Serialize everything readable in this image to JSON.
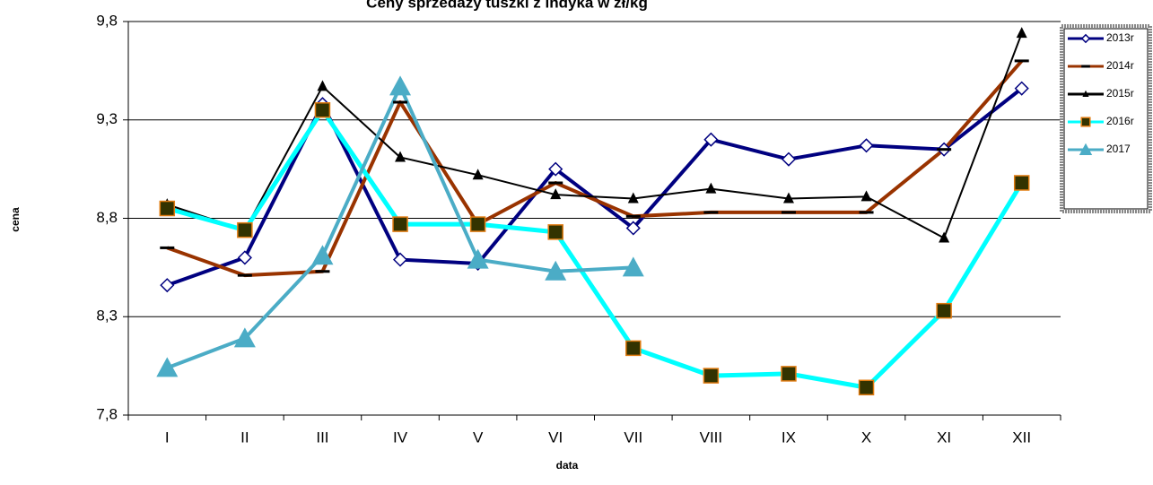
{
  "chart_data": {
    "type": "line",
    "title": "Ceny sprzedaży tuszki z indyka w zł/kg",
    "x_label": "data",
    "y_label": "cena",
    "categories": [
      "I",
      "II",
      "III",
      "IV",
      "V",
      "VI",
      "VII",
      "VIII",
      "IX",
      "X",
      "XI",
      "XII"
    ],
    "ylim": [
      7.8,
      9.8
    ],
    "yticks": [
      {
        "value": 7.8,
        "label": "7,8"
      },
      {
        "value": 8.3,
        "label": "8,3"
      },
      {
        "value": 8.8,
        "label": "8,8"
      },
      {
        "value": 9.3,
        "label": "9,3"
      },
      {
        "value": 9.8,
        "label": "9,8"
      }
    ],
    "grid": true,
    "legend": "right",
    "series": [
      {
        "name": "2013r",
        "color": "#000080",
        "marker": "diamond",
        "values": [
          8.46,
          8.6,
          9.38,
          8.59,
          8.57,
          9.05,
          8.75,
          9.2,
          9.1,
          9.17,
          9.15,
          9.46
        ]
      },
      {
        "name": "2014r",
        "color": "#993300",
        "marker": "dash",
        "values": [
          8.65,
          8.51,
          8.53,
          9.39,
          8.77,
          8.98,
          8.81,
          8.83,
          8.83,
          8.83,
          9.15,
          9.6
        ]
      },
      {
        "name": "2015r",
        "color": "#000000",
        "marker": "triangle",
        "values": [
          8.87,
          8.74,
          9.47,
          9.11,
          9.02,
          8.92,
          8.9,
          8.95,
          8.9,
          8.91,
          8.7,
          9.74
        ]
      },
      {
        "name": "2016r",
        "color": "#00ffff",
        "marker": "square",
        "values": [
          8.85,
          8.74,
          9.35,
          8.77,
          8.77,
          8.73,
          8.14,
          8.0,
          8.01,
          7.94,
          8.33,
          8.98
        ]
      },
      {
        "name": "2017",
        "color": "#4bacc6",
        "marker": "big-triangle",
        "values": [
          8.04,
          8.19,
          8.61,
          9.47,
          8.59,
          8.53,
          8.55,
          null,
          null,
          null,
          null,
          null
        ]
      }
    ]
  }
}
